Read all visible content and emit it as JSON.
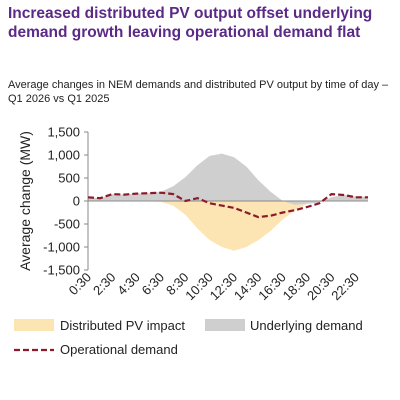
{
  "title": "Increased distributed PV output offset underlying demand growth leaving operational demand flat",
  "subtitle": "Average changes in NEM demands and distributed PV output by time of day – Q1 2026 vs Q1 2025",
  "colors": {
    "title": "#5b2a86",
    "pv_fill": "#fde4b3",
    "underlying_fill": "#cfcfcf",
    "operational_line": "#8b1a2b",
    "axis": "#888888",
    "text": "#222222"
  },
  "chart_data": {
    "type": "area",
    "ylabel": "Average change (MW)",
    "xlabel": "",
    "ylim": [
      -1500,
      1500
    ],
    "yticks": [
      -1500,
      -1000,
      -500,
      0,
      500,
      1000,
      1500
    ],
    "ytick_labels": [
      "-1,500",
      "-1,000",
      "-500",
      "0",
      "500",
      "1,000",
      "1,500"
    ],
    "xtick_labels": [
      "0:30",
      "2:30",
      "4:30",
      "6:30",
      "8:30",
      "10:30",
      "12:30",
      "14:30",
      "16:30",
      "18:30",
      "20:30",
      "22:30"
    ],
    "x": [
      "0:30",
      "1:30",
      "2:30",
      "3:30",
      "4:30",
      "5:30",
      "6:30",
      "7:30",
      "8:30",
      "9:30",
      "10:30",
      "11:30",
      "12:30",
      "13:30",
      "14:30",
      "15:30",
      "16:30",
      "17:30",
      "18:30",
      "19:30",
      "20:30",
      "21:30",
      "22:30",
      "23:30"
    ],
    "grid": false,
    "legend_position": "bottom",
    "series": [
      {
        "name": "Distributed PV impact",
        "style": "area",
        "values": [
          0,
          0,
          0,
          0,
          0,
          0,
          -20,
          -100,
          -300,
          -600,
          -850,
          -1000,
          -1080,
          -1000,
          -850,
          -650,
          -400,
          -200,
          -60,
          -10,
          0,
          0,
          0,
          0
        ]
      },
      {
        "name": "Underlying demand",
        "style": "area",
        "values": [
          80,
          60,
          150,
          140,
          160,
          170,
          200,
          320,
          520,
          780,
          980,
          1030,
          950,
          750,
          450,
          200,
          0,
          -80,
          -60,
          -40,
          80,
          130,
          100,
          90
        ]
      },
      {
        "name": "Operational demand",
        "style": "dashed-line",
        "values": [
          80,
          60,
          150,
          140,
          160,
          170,
          180,
          150,
          0,
          60,
          -50,
          -100,
          -150,
          -250,
          -350,
          -320,
          -250,
          -200,
          -130,
          -50,
          150,
          130,
          80,
          80
        ]
      }
    ]
  }
}
